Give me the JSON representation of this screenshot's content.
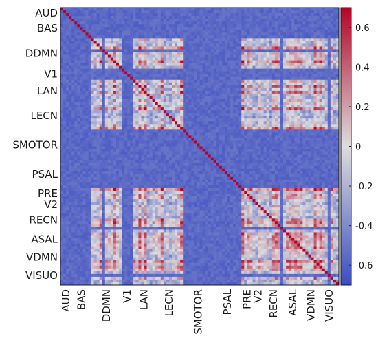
{
  "chart_data": {
    "type": "heatmap",
    "title": "",
    "xlabel": "",
    "ylabel": "",
    "matrix_size": 100,
    "diagonal_value": 0.7,
    "networks": [
      {
        "label": "AUD",
        "start": 0,
        "size": 4
      },
      {
        "label": "BAS",
        "start": 4,
        "size": 7
      },
      {
        "label": "DDMN",
        "start": 11,
        "size": 11
      },
      {
        "label": "V1",
        "start": 22,
        "size": 4
      },
      {
        "label": "LAN",
        "start": 26,
        "size": 8
      },
      {
        "label": "LECN",
        "start": 34,
        "size": 10
      },
      {
        "label": "SMOTOR",
        "start": 44,
        "size": 11
      },
      {
        "label": "PSAL",
        "start": 55,
        "size": 10
      },
      {
        "label": "PRE",
        "start": 65,
        "size": 4
      },
      {
        "label": "V2",
        "start": 69,
        "size": 4
      },
      {
        "label": "RECN",
        "start": 73,
        "size": 7
      },
      {
        "label": "ASAL",
        "start": 80,
        "size": 7
      },
      {
        "label": "VDMN",
        "start": 87,
        "size": 6
      },
      {
        "label": "VISUO",
        "start": 93,
        "size": 7
      }
    ],
    "colorbar": {
      "min": -0.7,
      "max": 0.7,
      "ticks": [
        0.6,
        0.4,
        0.2,
        0,
        -0.2,
        -0.4,
        -0.6
      ],
      "tick_labels": [
        "0.6",
        "0.4",
        "0.2",
        "0",
        "-0.2",
        "-0.4",
        "-0.6"
      ],
      "colormap": "coolwarm",
      "low_color": "#3b4cc0",
      "mid_color": "#dddddd",
      "high_color": "#b40426"
    },
    "note_pattern": "Low-correlation strips at AUD, BAS, V1, SMOTOR and PSAL; high-correlation blocks among DDMN, LAN, LECN, PRE, V2, RECN, VDMN and VISUO."
  }
}
